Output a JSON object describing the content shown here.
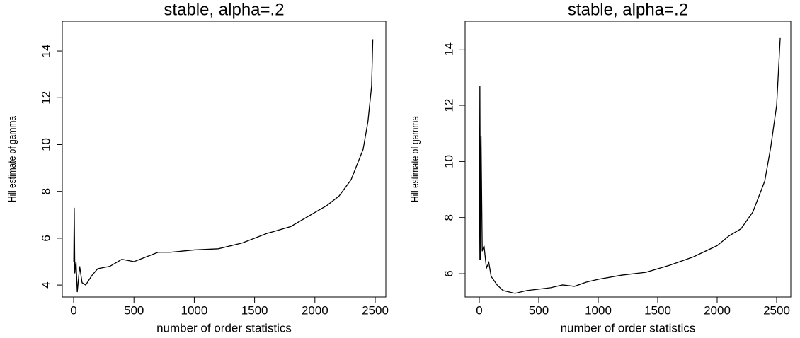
{
  "chart_data": [
    {
      "type": "line",
      "title": "stable, alpha=.2",
      "x_label": "number of order statistics",
      "y_label": "Hill estimate of gamma",
      "x": [
        1,
        5,
        10,
        20,
        30,
        50,
        70,
        100,
        150,
        200,
        300,
        400,
        500,
        600,
        700,
        800,
        1000,
        1200,
        1400,
        1600,
        1800,
        2000,
        2100,
        2200,
        2300,
        2400,
        2440,
        2470,
        2480
      ],
      "series": [
        {
          "name": "Hill estimate",
          "color": "#000000",
          "values": [
            5,
            7.3,
            4.5,
            5,
            3.7,
            4.8,
            4.1,
            4,
            4.4,
            4.7,
            4.8,
            5.1,
            5,
            5.2,
            5.4,
            5.4,
            5.5,
            5.55,
            5.8,
            6.2,
            6.5,
            7.1,
            7.4,
            7.8,
            8.5,
            9.8,
            11,
            12.5,
            14.5
          ]
        }
      ],
      "xlim": [
        -94,
        2588
      ],
      "ylim": [
        3.49,
        15.27
      ],
      "xticks": [
        0,
        500,
        1000,
        1500,
        2000,
        2500
      ],
      "yticks": [
        4,
        6,
        8,
        10,
        12,
        14
      ]
    },
    {
      "type": "line",
      "title": "stable, alpha=.2",
      "x_label": "number of order statistics",
      "y_label": "Hill estimate of gamma",
      "x": [
        1,
        5,
        10,
        15,
        25,
        40,
        60,
        80,
        100,
        150,
        200,
        300,
        400,
        500,
        600,
        700,
        800,
        900,
        1000,
        1200,
        1400,
        1600,
        1800,
        2000,
        2100,
        2200,
        2300,
        2400,
        2450,
        2500,
        2530
      ],
      "series": [
        {
          "name": "Hill estimate",
          "color": "#000000",
          "values": [
            6.5,
            12.7,
            6.5,
            10.9,
            6.8,
            7,
            6.2,
            6.4,
            5.9,
            5.6,
            5.4,
            5.3,
            5.4,
            5.45,
            5.5,
            5.6,
            5.55,
            5.7,
            5.8,
            5.95,
            6.05,
            6.3,
            6.6,
            7,
            7.35,
            7.6,
            8.2,
            9.3,
            10.5,
            12,
            14.4
          ]
        }
      ],
      "xlim": [
        -119,
        2619
      ],
      "ylim": [
        5.17,
        15.0
      ],
      "xticks": [
        0,
        500,
        1000,
        1500,
        2000,
        2500
      ],
      "yticks": [
        6,
        8,
        10,
        12,
        14
      ]
    }
  ]
}
